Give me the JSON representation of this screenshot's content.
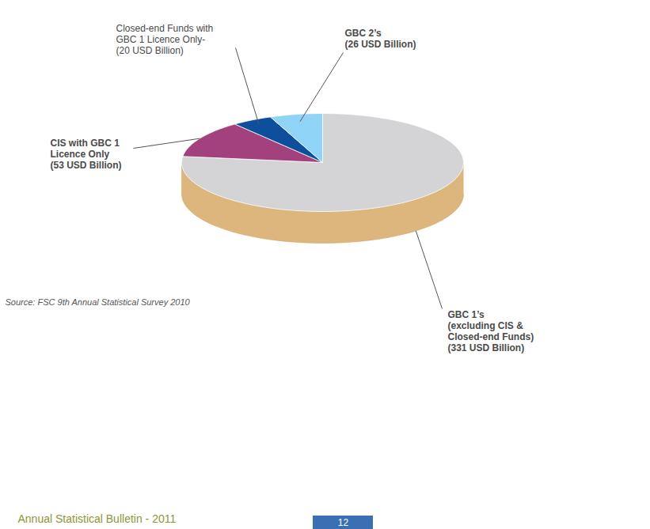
{
  "chart_data": {
    "type": "pie",
    "categories": [
      "GBC 1’s (excluding CIS & Closed-end Funds)",
      "CIS with GBC 1 Licence Only",
      "Closed-end Funds with GBC 1 Licence Only-",
      "GBC 2’s"
    ],
    "values": [
      331,
      53,
      20,
      26
    ],
    "value_labels": [
      "(331 USD Billion)",
      "(53 USD Billion)",
      "(20 USD Billion)",
      "(26 USD Billion)"
    ],
    "colors": [
      "#d4d4d6",
      "#a3417f",
      "#0d4f9b",
      "#8fd4f6"
    ],
    "data_labels": true,
    "source": "Source: FSC 9th Annual Statistical Survey 2010",
    "footer": "Annual Statistical Bulletin - 2011",
    "page_number": "12"
  }
}
